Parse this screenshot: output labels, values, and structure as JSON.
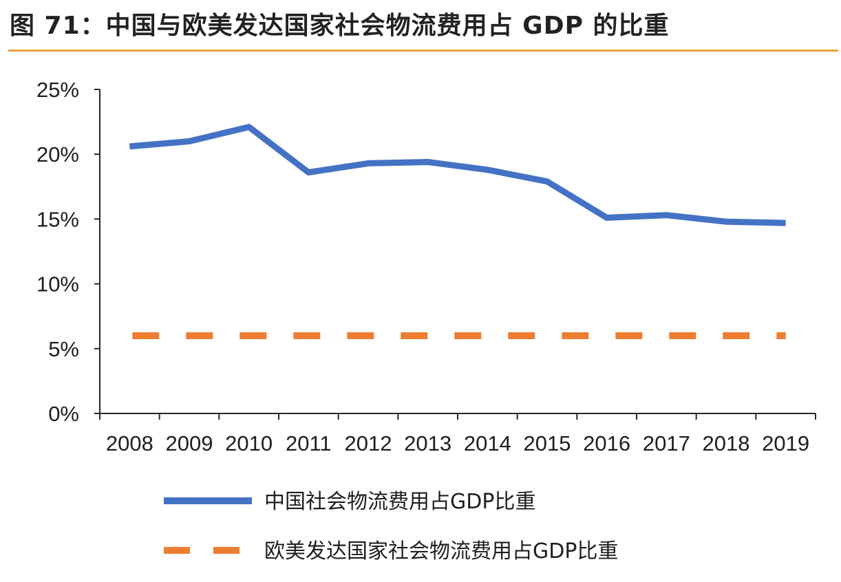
{
  "chart_data": {
    "type": "line",
    "title": "图 71：中国与欧美发达国家社会物流费用占 GDP 的比重",
    "categories": [
      "2008",
      "2009",
      "2010",
      "2011",
      "2012",
      "2013",
      "2014",
      "2015",
      "2016",
      "2017",
      "2018",
      "2019"
    ],
    "ylim": [
      0,
      25
    ],
    "yticks": [
      0,
      5,
      10,
      15,
      20,
      25
    ],
    "ytick_labels": [
      "0%",
      "5%",
      "10%",
      "15%",
      "20%",
      "25%"
    ],
    "xlabel": "",
    "ylabel": "",
    "grid": false,
    "legend_position": "bottom",
    "series": [
      {
        "name": "中国社会物流费用占GDP比重",
        "values": [
          20.6,
          21.0,
          22.1,
          18.6,
          19.3,
          19.4,
          18.8,
          17.9,
          15.1,
          15.3,
          14.8,
          14.7
        ],
        "color": "#4472c4",
        "style": "solid"
      },
      {
        "name": "欧美发达国家社会物流费用占GDP比重",
        "values": [
          6,
          6,
          6,
          6,
          6,
          6,
          6,
          6,
          6,
          6,
          6,
          6
        ],
        "color": "#ed7d31",
        "style": "dashed"
      }
    ]
  }
}
